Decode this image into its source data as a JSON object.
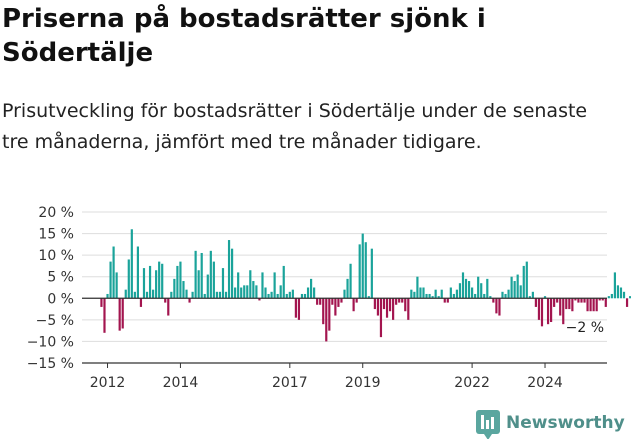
{
  "title": "Priserna på bostadsrätter sjönk i Södertälje",
  "subtitle": "Prisutveckling för bostadsrätter i Södertälje under de senaste tre månaderna, jämfört med tre månader tidigare.",
  "brand": "Newsworthy",
  "colors": {
    "positive": "#1aa39a",
    "negative": "#a3154f",
    "grid": "#dddddd",
    "axis": "#333333"
  },
  "chart_data": {
    "type": "bar",
    "ylim": [
      -15,
      20
    ],
    "yticks": [
      -15,
      -10,
      -5,
      0,
      5,
      10,
      15,
      20
    ],
    "ytick_labels": [
      "−15 %",
      "−10 %",
      "−5 %",
      "0 %",
      "5 %",
      "10 %",
      "15 %",
      "20 %"
    ],
    "xticks": [
      {
        "label": "2012",
        "x": 2012.0
      },
      {
        "label": "2014",
        "x": 2014.0
      },
      {
        "label": "2017",
        "x": 2017.0
      },
      {
        "label": "2019",
        "x": 2019.0
      },
      {
        "label": "2022",
        "x": 2022.0
      },
      {
        "label": "2024",
        "x": 2024.0
      }
    ],
    "grid": true,
    "last_value_label": "−2 %",
    "series": [
      {
        "start": "2011-11",
        "values": [
          -2,
          -8,
          1,
          8.5,
          12,
          6,
          -7.5,
          -7,
          2,
          9,
          16,
          1.5,
          12,
          -2,
          7,
          1.5,
          7.5,
          2,
          6.5,
          8.5,
          8,
          -1,
          -4,
          1.5,
          4.5,
          7.5,
          8.5,
          4,
          2,
          -1,
          1.5,
          11,
          6.5,
          10.5,
          1,
          5.5,
          11,
          8.5,
          1.5,
          1.5,
          7,
          1.5,
          13.5,
          11.5,
          2.5,
          6,
          2.5,
          3,
          3,
          6.5,
          4,
          3,
          -0.5,
          6,
          2.5,
          1,
          1.5,
          6,
          1,
          3,
          7.5,
          1,
          1.5,
          2,
          -4.5,
          -5,
          1,
          1,
          2.5,
          4.5,
          2.5,
          -1.5,
          -1.5,
          -6,
          -10,
          -7.5,
          -1.5,
          -4,
          -2,
          -1,
          2,
          4.5,
          8,
          -3,
          -1,
          12.5,
          15,
          13,
          0.5,
          11.5,
          -2.5,
          -4,
          -9,
          -2.5,
          -4.5,
          -3,
          -5,
          -1.5,
          -1,
          -1,
          -3,
          -5,
          2,
          1.5,
          5,
          2.5,
          2.5,
          1,
          1,
          0.5,
          2,
          0.5,
          2,
          -1,
          -1,
          2.5,
          1,
          2,
          3.5,
          6,
          4.5,
          4,
          2.5,
          1,
          5,
          3.5,
          1,
          4.5,
          0.5,
          -1,
          -3.5,
          -4,
          1.5,
          1,
          2,
          5,
          4,
          5.5,
          3,
          7.5,
          8.5,
          0.5,
          1.5,
          -2,
          -5,
          -6.5,
          0.5,
          -6,
          -5.5,
          -2,
          -1,
          -4,
          -6,
          -2.5,
          -2.5,
          -3,
          -0.5,
          -1,
          -1,
          -1,
          -3,
          -3,
          -3,
          -3,
          -0.5,
          -0.5,
          -2,
          0.5,
          1,
          6,
          3,
          2.5,
          1.5,
          -2,
          0.5,
          -0.5,
          -0.5,
          3,
          0.5,
          -3,
          -4.5,
          -2
        ]
      }
    ]
  }
}
